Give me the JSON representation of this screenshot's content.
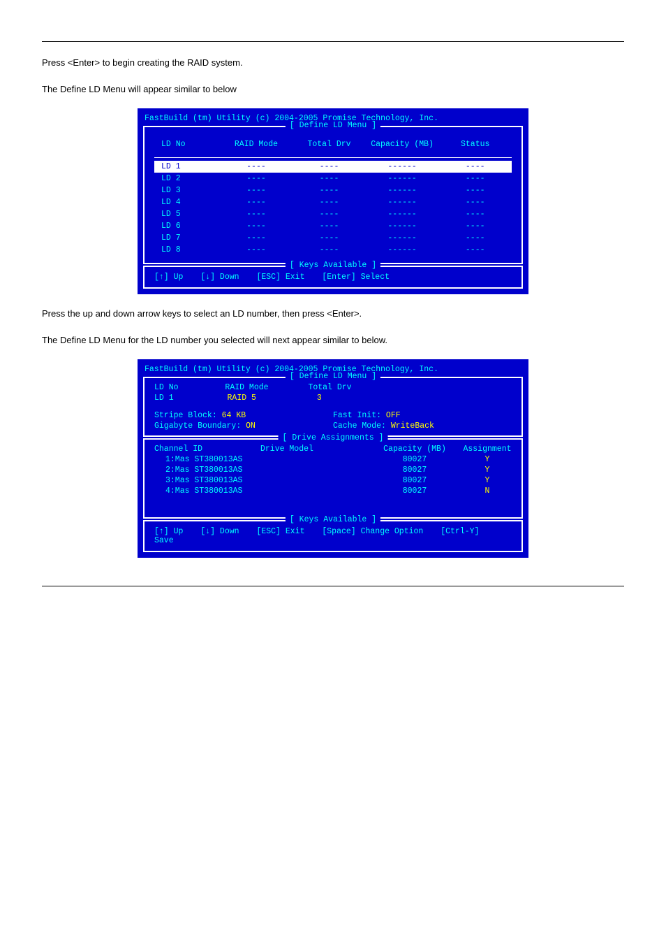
{
  "para1": "Press <Enter> to begin creating the RAID system.",
  "para2": "The Define LD Menu will appear similar to below",
  "para3": "Press the up and down arrow keys to select an LD number, then press <Enter>.",
  "para4": "The Define LD Menu for the LD number you selected will next appear similar to below.",
  "screenshot1": {
    "title": "FastBuild (tm) Utility (c) 2004-2005 Promise Technology, Inc.",
    "box_label1": "[ Define LD Menu ]",
    "box_label2": "[ Keys Available ]",
    "headers": [
      "LD No",
      "RAID Mode",
      "Total Drv",
      "Capacity (MB)",
      "Status"
    ],
    "rows": [
      {
        "no": "LD 1",
        "mode": "----",
        "drv": "----",
        "cap": "------",
        "status": "----",
        "selected": true
      },
      {
        "no": "LD 2",
        "mode": "----",
        "drv": "----",
        "cap": "------",
        "status": "----",
        "selected": false
      },
      {
        "no": "LD 3",
        "mode": "----",
        "drv": "----",
        "cap": "------",
        "status": "----",
        "selected": false
      },
      {
        "no": "LD 4",
        "mode": "----",
        "drv": "----",
        "cap": "------",
        "status": "----",
        "selected": false
      },
      {
        "no": "LD 5",
        "mode": "----",
        "drv": "----",
        "cap": "------",
        "status": "----",
        "selected": false
      },
      {
        "no": "LD 6",
        "mode": "----",
        "drv": "----",
        "cap": "------",
        "status": "----",
        "selected": false
      },
      {
        "no": "LD 7",
        "mode": "----",
        "drv": "----",
        "cap": "------",
        "status": "----",
        "selected": false
      },
      {
        "no": "LD 8",
        "mode": "----",
        "drv": "----",
        "cap": "------",
        "status": "----",
        "selected": false
      }
    ],
    "keys": [
      "[↑] Up",
      "[↓] Down",
      "[ESC] Exit",
      "[Enter] Select"
    ]
  },
  "screenshot2": {
    "title": "FastBuild (tm) Utility (c) 2004-2005 Promise Technology, Inc.",
    "box_label1": "[ Define LD Menu ]",
    "box_label2": "[ Drive Assignments ]",
    "box_label3": "[ Keys Available ]",
    "ld_no_label": "LD No",
    "ld_no_val": "LD 1",
    "raid_mode_label": "RAID Mode",
    "raid_mode_val": "RAID 5",
    "total_drv_label": "Total Drv",
    "total_drv_val": "3",
    "stripe_label": "Stripe Block:",
    "stripe_val": "64 KB",
    "fast_init_label": "Fast Init:",
    "fast_init_val": "OFF",
    "gb_label": "Gigabyte Boundary:",
    "gb_val": "ON",
    "cache_label": "Cache Mode:",
    "cache_val": "WriteBack",
    "drive_headers": [
      "Channel ID",
      "Drive Model",
      "Capacity (MB)",
      "Assignment"
    ],
    "drives": [
      {
        "id": "1:Mas",
        "model": "ST380013AS",
        "cap": "80027",
        "assign": "Y"
      },
      {
        "id": "2:Mas",
        "model": "ST380013AS",
        "cap": "80027",
        "assign": "Y"
      },
      {
        "id": "3:Mas",
        "model": "ST380013AS",
        "cap": "80027",
        "assign": "Y"
      },
      {
        "id": "4:Mas",
        "model": "ST380013AS",
        "cap": "80027",
        "assign": "N"
      }
    ],
    "keys": [
      "[↑] Up",
      "[↓] Down",
      "[ESC] Exit",
      "[Space] Change Option",
      "[Ctrl-Y] Save"
    ]
  },
  "colors": {
    "bios_bg": "#0000cc",
    "bios_text": "#ffffff",
    "bios_cyan": "#00ffff",
    "bios_yellow": "#ffff00",
    "sel_bg": "#ffffff",
    "sel_fg": "#0000cc"
  }
}
